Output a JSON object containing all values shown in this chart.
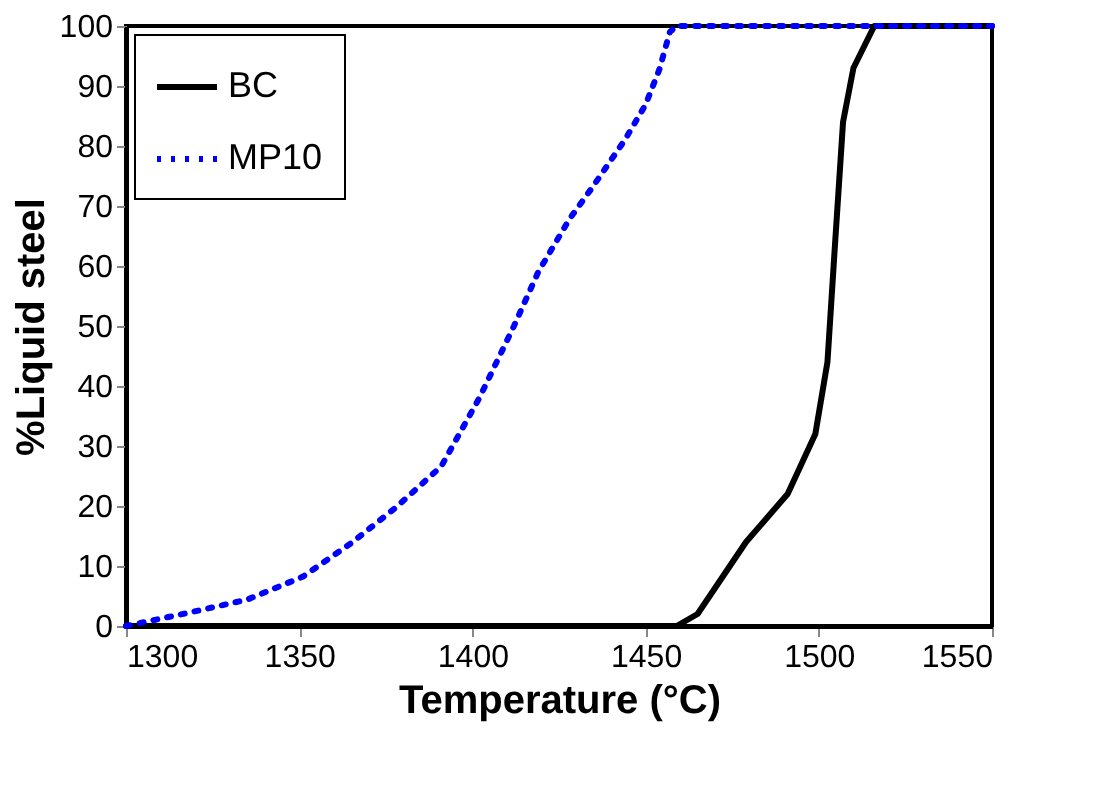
{
  "chart_data": {
    "type": "line",
    "xlabel": "Temperature (°C)",
    "ylabel": "%Liquid steel",
    "xlim": [
      1300,
      1550
    ],
    "xticks": [
      1300,
      1350,
      1400,
      1450,
      1500,
      1550
    ],
    "ylim": [
      0,
      100
    ],
    "yticks": [
      0,
      10,
      20,
      30,
      40,
      50,
      60,
      70,
      80,
      90,
      100
    ],
    "grid": false,
    "legend": "top left",
    "series": [
      {
        "name": "BC",
        "color": "#000000",
        "line_style": "solid",
        "x": [
          1300,
          1400,
          1459,
          1465,
          1479,
          1491,
          1499,
          1502.5,
          1504.5,
          1507,
          1510,
          1516,
          1550
        ],
        "values": [
          0,
          0,
          0,
          2,
          14,
          22,
          32,
          44,
          62,
          84,
          93,
          100,
          100
        ]
      },
      {
        "name": "MP10",
        "color": "#0000ff",
        "line_style": "dotted",
        "x": [
          1300,
          1318,
          1335,
          1351,
          1365,
          1378,
          1391,
          1402,
          1412,
          1419,
          1428,
          1434.5,
          1444,
          1450,
          1454,
          1457,
          1459,
          1550
        ],
        "values": [
          0,
          2.2,
          4.4,
          8.2,
          13.8,
          19.8,
          26.6,
          38,
          50,
          59,
          67.8,
          73,
          81,
          86.9,
          92.8,
          99,
          100,
          100
        ]
      }
    ]
  }
}
